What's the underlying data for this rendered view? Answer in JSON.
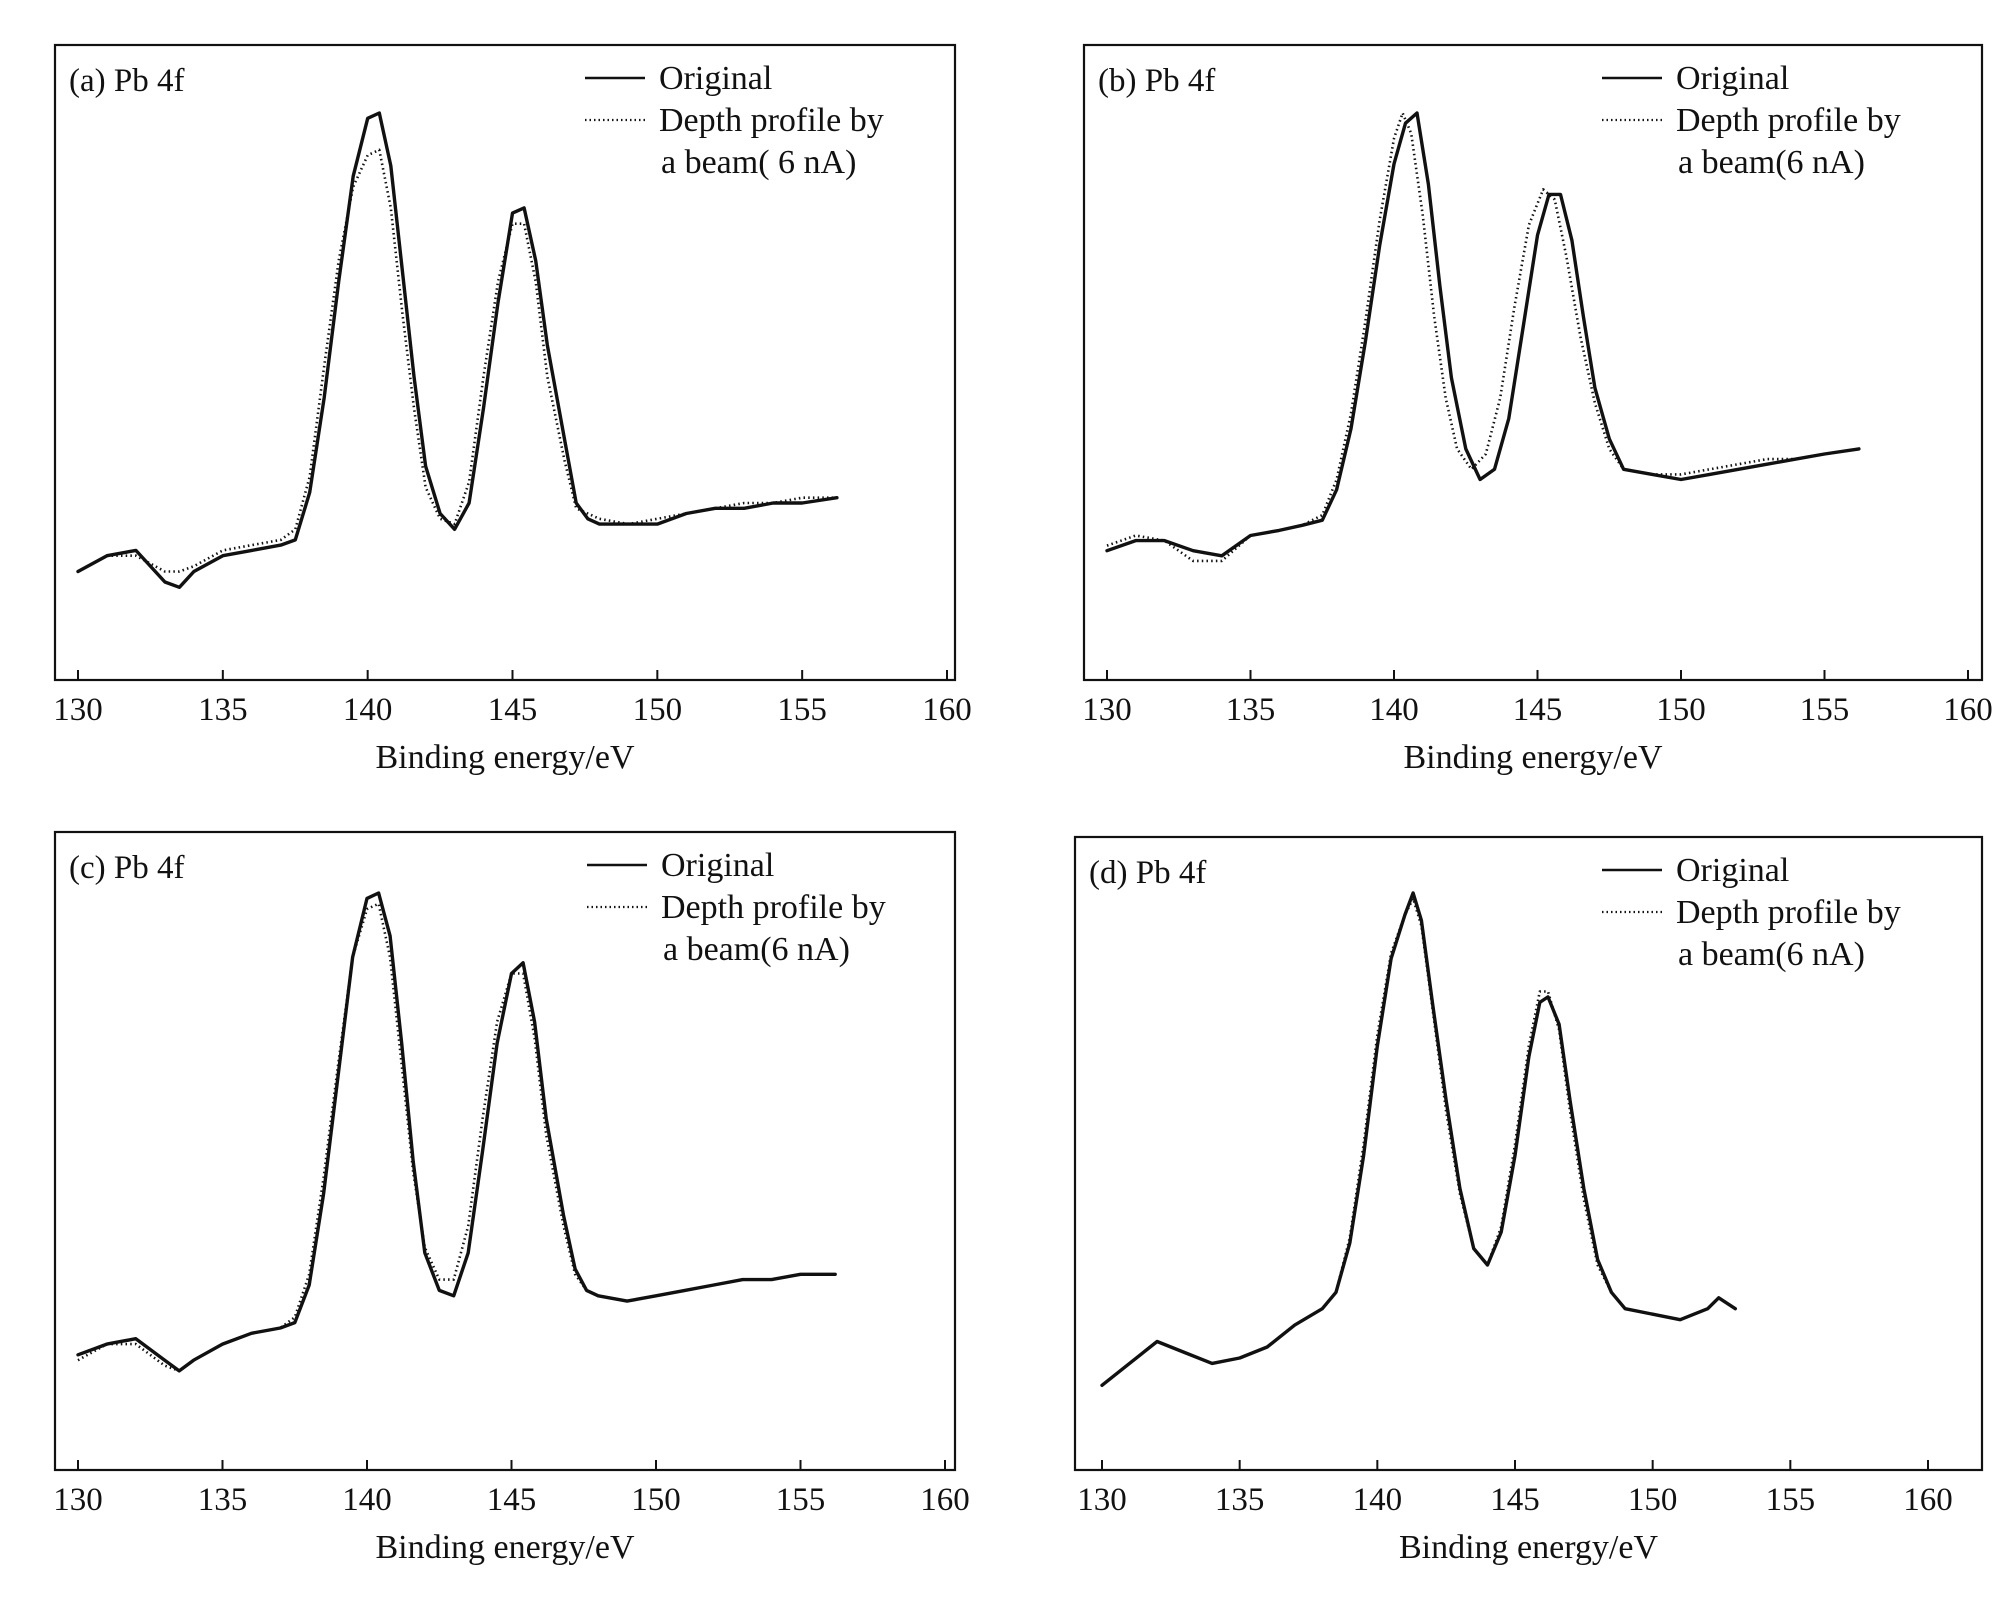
{
  "chart_data": [
    {
      "type": "line",
      "panel_label": "(a) Pb 4f",
      "xlabel": "Binding energy/eV",
      "ylabel": "",
      "xlim": [
        130,
        160
      ],
      "xticks": [
        130,
        135,
        140,
        145,
        150,
        155,
        160
      ],
      "ylim": [
        0,
        100
      ],
      "legend": {
        "placement": "top-right",
        "entries": [
          "Original",
          "Depth profile by",
          "a beam( 6 nA)"
        ]
      },
      "series": [
        {
          "name": "Original",
          "style": "solid",
          "x": [
            130,
            131,
            132,
            133,
            133.5,
            134,
            135,
            136,
            137,
            137.5,
            138,
            138.5,
            139,
            139.5,
            140,
            140.4,
            140.8,
            141.2,
            141.6,
            142,
            142.5,
            143,
            143.5,
            144,
            144.5,
            145,
            145.4,
            145.8,
            146.2,
            146.8,
            147.2,
            147.6,
            148,
            149,
            150,
            151,
            152,
            153,
            154,
            155,
            156.2
          ],
          "y": [
            13,
            16,
            17,
            11,
            10,
            13,
            16,
            17,
            18,
            19,
            28,
            46,
            68,
            88,
            99,
            100,
            90,
            70,
            50,
            33,
            24,
            21,
            26,
            44,
            64,
            81,
            82,
            72,
            56,
            38,
            26,
            23,
            22,
            22,
            22,
            24,
            25,
            25,
            26,
            26,
            27
          ]
        },
        {
          "name": "Depth profile by a beam( 6 nA)",
          "style": "dotted",
          "x": [
            130,
            131,
            132,
            133,
            133.5,
            134,
            135,
            136,
            137,
            137.5,
            138,
            138.5,
            139,
            139.5,
            140,
            140.4,
            140.8,
            141.2,
            141.6,
            142,
            142.5,
            143,
            143.5,
            144,
            144.5,
            145,
            145.4,
            145.8,
            146.2,
            146.8,
            147.2,
            147.6,
            148,
            149,
            150,
            151,
            152,
            153,
            154,
            155,
            156.2
          ],
          "y": [
            13,
            16,
            16,
            13,
            13,
            14,
            17,
            18,
            19,
            21,
            31,
            52,
            72,
            86,
            92,
            93,
            82,
            62,
            44,
            29,
            23,
            22,
            30,
            50,
            68,
            79,
            79,
            68,
            50,
            34,
            25,
            24,
            23,
            22,
            23,
            24,
            25,
            26,
            26,
            27,
            27
          ]
        }
      ]
    },
    {
      "type": "line",
      "panel_label": "(b) Pb 4f",
      "xlabel": "Binding energy/eV",
      "ylabel": "",
      "xlim": [
        130,
        160
      ],
      "xticks": [
        130,
        135,
        140,
        145,
        150,
        155,
        160
      ],
      "ylim": [
        0,
        100
      ],
      "legend": {
        "placement": "top-right",
        "entries": [
          "Original",
          "Depth profile by",
          "a beam(6 nA)"
        ]
      },
      "series": [
        {
          "name": "Original",
          "style": "solid",
          "x": [
            130,
            131,
            132,
            133,
            134,
            135,
            136,
            136.8,
            137.5,
            138,
            138.5,
            139,
            139.5,
            140,
            140.4,
            140.8,
            141.2,
            141.6,
            142,
            142.5,
            143,
            143.5,
            144,
            144.5,
            145,
            145.4,
            145.8,
            146.2,
            146.6,
            147,
            147.5,
            148,
            149,
            150,
            151,
            152,
            153,
            154,
            155,
            156.2
          ],
          "y": [
            14,
            16,
            16,
            14,
            13,
            17,
            18,
            19,
            20,
            26,
            38,
            55,
            74,
            90,
            98,
            100,
            86,
            66,
            48,
            34,
            28,
            30,
            40,
            58,
            76,
            84,
            84,
            75,
            60,
            46,
            36,
            30,
            29,
            28,
            29,
            30,
            31,
            32,
            33,
            34
          ]
        },
        {
          "name": "Depth profile by a beam(6 nA)",
          "style": "dotted",
          "x": [
            130,
            131,
            132,
            133,
            134,
            135,
            136,
            136.8,
            137.5,
            138,
            138.5,
            139,
            139.5,
            140,
            140.3,
            140.6,
            141,
            141.4,
            141.8,
            142.2,
            142.7,
            143.2,
            143.7,
            144.2,
            144.7,
            145.2,
            145.6,
            146,
            146.5,
            147,
            147.5,
            148,
            149,
            150,
            151,
            152,
            153,
            154,
            155,
            156.2
          ],
          "y": [
            15,
            17,
            16,
            12,
            12,
            17,
            18,
            19,
            21,
            28,
            41,
            59,
            79,
            95,
            100,
            96,
            80,
            60,
            44,
            34,
            30,
            33,
            44,
            62,
            78,
            85,
            83,
            72,
            56,
            43,
            34,
            30,
            29,
            29,
            30,
            31,
            32,
            32,
            33,
            34
          ]
        }
      ]
    },
    {
      "type": "line",
      "panel_label": "(c) Pb 4f",
      "xlabel": "Binding energy/eV",
      "ylabel": "",
      "xlim": [
        130,
        160
      ],
      "xticks": [
        130,
        135,
        140,
        145,
        150,
        155,
        160
      ],
      "ylim": [
        0,
        100
      ],
      "legend": {
        "placement": "top-right",
        "entries": [
          "Original",
          "Depth profile by",
          "a beam(6 nA)"
        ]
      },
      "series": [
        {
          "name": "Original",
          "style": "solid",
          "x": [
            130,
            131,
            132,
            133,
            133.5,
            134,
            135,
            136,
            137,
            137.5,
            138,
            138.5,
            139,
            139.5,
            140,
            140.4,
            140.8,
            141.2,
            141.6,
            142,
            142.5,
            143,
            143.5,
            144,
            144.5,
            145,
            145.4,
            145.8,
            146.2,
            146.8,
            147.2,
            147.6,
            148,
            149,
            150,
            151,
            152,
            153,
            154,
            155,
            156.2
          ],
          "y": [
            14,
            16,
            17,
            13,
            11,
            13,
            16,
            18,
            19,
            20,
            27,
            44,
            66,
            88,
            99,
            100,
            92,
            72,
            50,
            33,
            26,
            25,
            33,
            52,
            72,
            85,
            87,
            76,
            58,
            40,
            30,
            26,
            25,
            24,
            25,
            26,
            27,
            28,
            28,
            29,
            29
          ]
        },
        {
          "name": "Depth profile by a beam(6 nA)",
          "style": "dotted",
          "x": [
            130,
            131,
            132,
            133,
            133.5,
            134,
            135,
            136,
            137,
            137.5,
            138,
            138.5,
            139,
            139.5,
            140,
            140.4,
            140.8,
            141.2,
            141.6,
            142,
            142.5,
            143,
            143.5,
            144,
            144.5,
            145,
            145.4,
            145.8,
            146.2,
            146.8,
            147.2,
            147.6,
            148,
            149,
            150,
            151,
            152,
            153,
            154,
            155,
            156.2
          ],
          "y": [
            13,
            16,
            16,
            12,
            11,
            13,
            16,
            18,
            19,
            21,
            29,
            47,
            68,
            88,
            97,
            98,
            88,
            68,
            48,
            34,
            28,
            28,
            38,
            58,
            76,
            85,
            85,
            73,
            55,
            38,
            29,
            26,
            25,
            24,
            25,
            26,
            27,
            28,
            28,
            29,
            29
          ]
        }
      ]
    },
    {
      "type": "line",
      "panel_label": "(d) Pb 4f",
      "xlabel": "Binding energy/eV",
      "ylabel": "",
      "xlim": [
        130,
        160
      ],
      "xticks": [
        130,
        135,
        140,
        145,
        150,
        155,
        160
      ],
      "ylim": [
        0,
        100
      ],
      "legend": {
        "placement": "top-right",
        "entries": [
          "Original",
          "Depth profile by",
          "a beam(6 nA)"
        ]
      },
      "series": [
        {
          "name": "Original",
          "style": "solid",
          "x": [
            130,
            131,
            132,
            133,
            134,
            135,
            136,
            137,
            138,
            138.5,
            139,
            139.5,
            140,
            140.5,
            141,
            141.3,
            141.6,
            142,
            142.5,
            143,
            143.5,
            144,
            144.5,
            145,
            145.5,
            145.9,
            146.2,
            146.6,
            147,
            147.5,
            148,
            148.5,
            149,
            150,
            151,
            152,
            152.4,
            153
          ],
          "y": [
            10,
            14,
            18,
            16,
            14,
            15,
            17,
            21,
            24,
            27,
            36,
            52,
            72,
            88,
            96,
            100,
            95,
            80,
            62,
            46,
            35,
            32,
            38,
            52,
            70,
            80,
            81,
            76,
            62,
            46,
            33,
            27,
            24,
            23,
            22,
            24,
            26,
            24
          ]
        },
        {
          "name": "Depth profile by a beam(6 nA)",
          "style": "dotted",
          "x": [
            130,
            131,
            132,
            133,
            134,
            135,
            136,
            137,
            138,
            138.5,
            139,
            139.5,
            140,
            140.5,
            141,
            141.3,
            141.6,
            142,
            142.5,
            143,
            143.5,
            144,
            144.5,
            145,
            145.5,
            145.9,
            146.2,
            146.6,
            147,
            147.5,
            148,
            148.5,
            149,
            150,
            151,
            152,
            152.4,
            153
          ],
          "y": [
            10,
            14,
            18,
            16,
            14,
            15,
            17,
            21,
            24,
            27,
            37,
            54,
            74,
            89,
            96,
            99,
            94,
            79,
            60,
            45,
            35,
            32,
            39,
            54,
            72,
            82,
            82,
            75,
            60,
            44,
            32,
            27,
            24,
            23,
            22,
            24,
            26,
            24
          ]
        }
      ]
    }
  ]
}
